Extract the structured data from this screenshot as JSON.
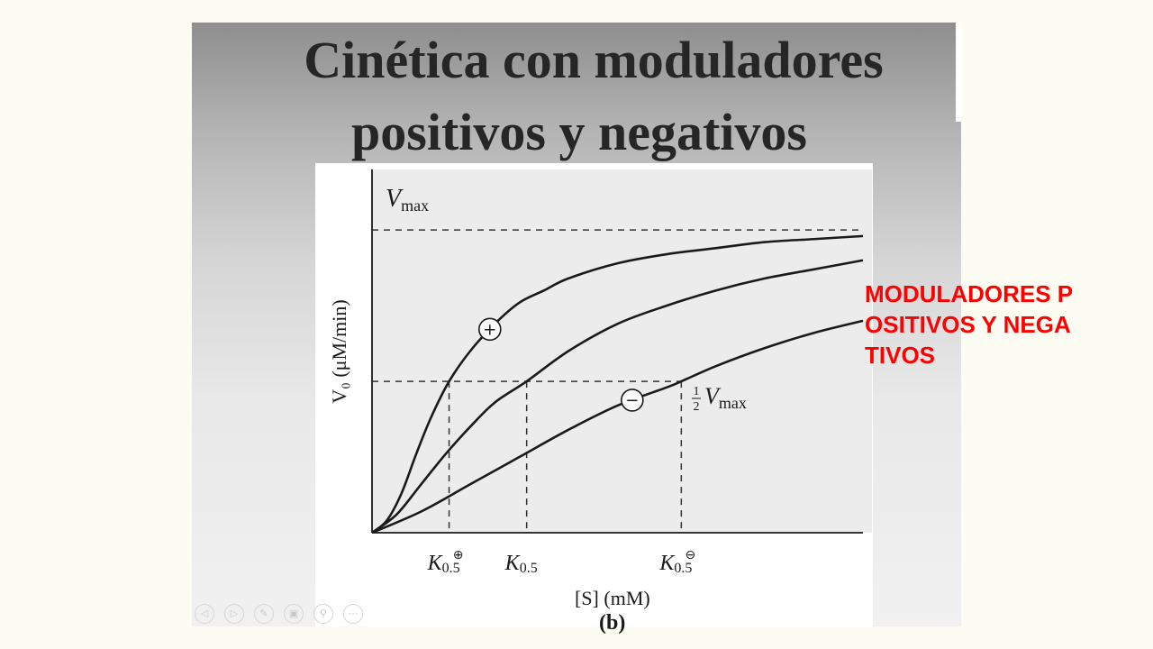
{
  "slide": {
    "title_line1": "Cinética con moduladores",
    "title_line2": "positivos y negativos",
    "side_note": "MODULADORES POSITIVOS  Y NEGATIVOS"
  },
  "colors": {
    "note": "#ff0000",
    "curve": "#1a1a1a",
    "plot_bg": "#ececec"
  },
  "chart_data": {
    "type": "line",
    "panel_label": "(b)",
    "ylabel": "V₀ (μM/min)",
    "xlabel": "[S] (mM)",
    "xlim": [
      0,
      10
    ],
    "ylim": [
      0,
      1.2
    ],
    "vmax_label": "V",
    "vmax_sub": "max",
    "half_vmax_label": "V",
    "half_vmax_sub": "max",
    "half_vmax_frac_num": "1",
    "half_vmax_frac_den": "2",
    "reference_lines": [
      {
        "axis": "y",
        "value": 1.0,
        "style": "dashed"
      },
      {
        "axis": "y",
        "value": 0.5,
        "style": "dashed"
      }
    ],
    "x_ticks": [
      {
        "value": 1.57,
        "label": "K",
        "sub": "0.5",
        "sup": "⊕"
      },
      {
        "value": 3.15,
        "label": "K",
        "sub": "0.5",
        "sup": ""
      },
      {
        "value": 6.3,
        "label": "K",
        "sub": "0.5",
        "sup": "⊖"
      }
    ],
    "series": [
      {
        "marker": "+",
        "marker_at": 2.4,
        "x": [
          0,
          0.3,
          0.6,
          0.9,
          1.2,
          1.57,
          2.0,
          2.5,
          3.0,
          3.5,
          4.0,
          5.0,
          6.0,
          7.0,
          8.0,
          9.0,
          10.0
        ],
        "y": [
          0,
          0.04,
          0.13,
          0.26,
          0.38,
          0.5,
          0.6,
          0.69,
          0.76,
          0.8,
          0.84,
          0.89,
          0.92,
          0.94,
          0.96,
          0.97,
          0.98
        ]
      },
      {
        "x": [
          0,
          0.5,
          1.0,
          1.5,
          2.0,
          2.5,
          3.15,
          4.0,
          5.0,
          6.0,
          7.0,
          8.0,
          9.0,
          10.0
        ],
        "y": [
          0,
          0.06,
          0.16,
          0.26,
          0.35,
          0.43,
          0.5,
          0.6,
          0.69,
          0.75,
          0.8,
          0.84,
          0.87,
          0.9
        ]
      },
      {
        "marker": "−",
        "marker_at": 5.3,
        "x": [
          0,
          1.0,
          2.0,
          3.0,
          4.0,
          5.0,
          6.0,
          6.3,
          7.0,
          8.0,
          9.0,
          10.0
        ],
        "y": [
          0,
          0.07,
          0.16,
          0.25,
          0.34,
          0.42,
          0.48,
          0.5,
          0.55,
          0.61,
          0.66,
          0.7
        ]
      }
    ]
  },
  "nav": {
    "icons": [
      "prev-icon",
      "next-icon",
      "pen-icon",
      "slides-icon",
      "zoom-icon",
      "menu-icon"
    ],
    "glyphs": [
      "◁",
      "▷",
      "✎",
      "▣",
      "⚲",
      "⋯"
    ]
  }
}
